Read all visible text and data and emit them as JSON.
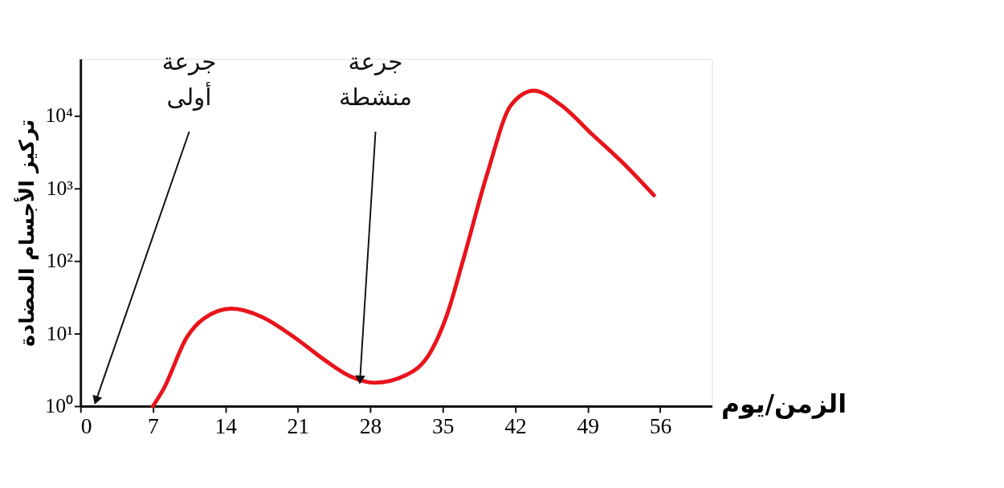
{
  "chart_data": {
    "type": "line",
    "xlabel": "الزمن/يوم",
    "ylabel": "تركيز الأجسام المضادة",
    "log": "y",
    "grid": false,
    "marker": "none",
    "line_style": "solid",
    "xlim": [
      0,
      61
    ],
    "xticks": [
      0,
      7,
      14,
      21,
      28,
      35,
      42,
      49,
      56
    ],
    "ylim": [
      1,
      60000
    ],
    "yticks": [
      {
        "value": 1,
        "label": "10⁰"
      },
      {
        "value": 10,
        "label": "10¹"
      },
      {
        "value": 100,
        "label": "10²"
      },
      {
        "value": 1000,
        "label": "10³"
      },
      {
        "value": 10000,
        "label": "10⁴"
      }
    ],
    "series": [
      {
        "color": "#e8141c",
        "x": [
          7,
          8,
          10.3,
          11.9,
          14.6,
          17.5,
          20.6,
          23.7,
          26,
          28.4,
          31.5,
          33.8,
          35.4,
          36.9,
          39.3,
          41.6,
          43.8,
          46.4,
          49.5,
          52.6,
          55.4
        ],
        "values": [
          1,
          1.7,
          9,
          16,
          22,
          17,
          9,
          4.2,
          2.6,
          2.1,
          2.7,
          5.5,
          18,
          95,
          1600,
          14000,
          22000,
          14000,
          5400,
          2100,
          800
        ]
      }
    ],
    "annotations": [
      {
        "text": "جرعة أولى",
        "x": 1.5,
        "y": 1.2
      },
      {
        "text": "جرعة منشطة",
        "x": 27,
        "y": 2.3
      }
    ]
  }
}
